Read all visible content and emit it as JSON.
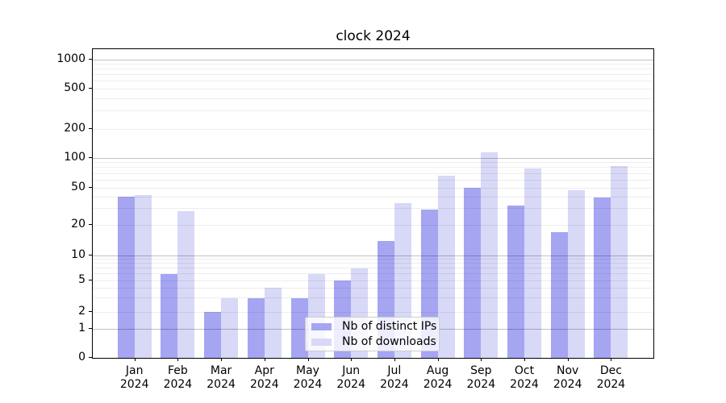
{
  "title": "clock 2024",
  "chart_data": {
    "type": "bar",
    "title": "clock 2024",
    "categories": [
      "Jan 2024",
      "Feb 2024",
      "Mar 2024",
      "Apr 2024",
      "May 2024",
      "Jun 2024",
      "Jul 2024",
      "Aug 2024",
      "Sep 2024",
      "Oct 2024",
      "Nov 2024",
      "Dec 2024"
    ],
    "series": [
      {
        "name": "Nb of distinct IPs",
        "color": "#a5a5f2",
        "values": [
          40,
          6,
          2,
          3,
          3,
          5,
          14,
          29,
          50,
          32,
          17,
          39
        ]
      },
      {
        "name": "Nb of downloads",
        "color": "#d8d8f7",
        "values": [
          42,
          28,
          3,
          4,
          6,
          7,
          34,
          66,
          115,
          78,
          47,
          83
        ]
      }
    ],
    "xlabel": "",
    "ylabel": "",
    "yscale": "symlog",
    "ytick_labels": [
      "0",
      "1",
      "2",
      "5",
      "10",
      "20",
      "50",
      "100",
      "200",
      "500",
      "1000"
    ],
    "ylim": [
      0,
      1150
    ],
    "grid": true,
    "legend_position": "lower-center"
  },
  "axis": {
    "ytick_anchors": [
      [
        0,
        0
      ],
      [
        1,
        36
      ],
      [
        2,
        57
      ],
      [
        5,
        96
      ],
      [
        10,
        127
      ],
      [
        20,
        165
      ],
      [
        50,
        211
      ],
      [
        100,
        248
      ],
      [
        200,
        284
      ],
      [
        500,
        334
      ],
      [
        1000,
        370
      ]
    ],
    "minor_grid_values": [
      2,
      3,
      4,
      5,
      6,
      7,
      8,
      9,
      20,
      30,
      40,
      50,
      60,
      70,
      80,
      90,
      200,
      300,
      400,
      500,
      600,
      700,
      800,
      900
    ],
    "major_grid_values": [
      1,
      10,
      100,
      1000
    ]
  },
  "legend": {
    "items": [
      {
        "label": "Nb of distinct IPs"
      },
      {
        "label": "Nb of downloads"
      }
    ]
  },
  "colors": {
    "ips_bar": "#a5a5f2",
    "downloads_bar": "#d8d8f7",
    "spine": "#000000",
    "major_grid": "#c2c2c2",
    "minor_grid": "#eeeeee",
    "legend_border": "#cccccc"
  }
}
